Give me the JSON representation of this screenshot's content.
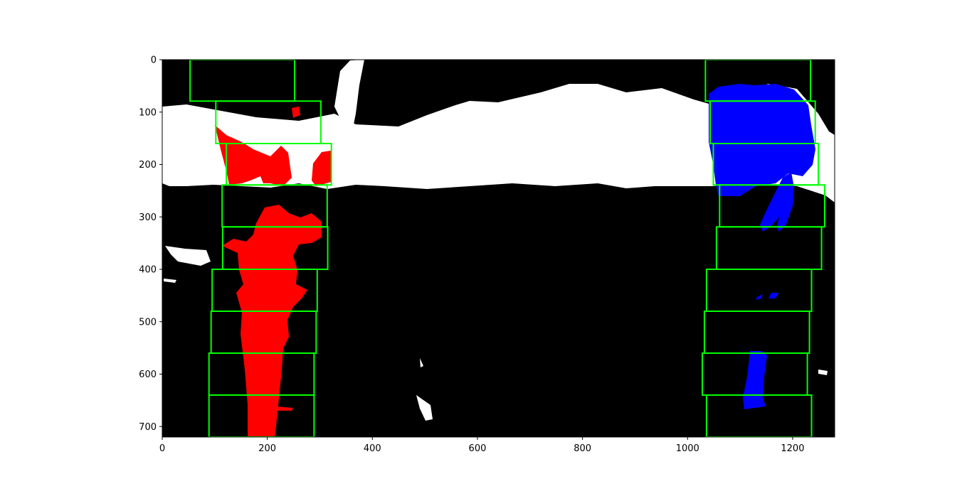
{
  "chart_data": {
    "type": "image",
    "xlim": [
      0,
      1280
    ],
    "ylim": [
      720,
      0
    ],
    "xticks": [
      0,
      200,
      400,
      600,
      800,
      1000,
      1200
    ],
    "yticks": [
      0,
      100,
      200,
      300,
      400,
      500,
      600,
      700
    ],
    "xtick_labels": [
      "0",
      "200",
      "400",
      "600",
      "800",
      "1000",
      "1200"
    ],
    "ytick_labels": [
      "0",
      "100",
      "200",
      "300",
      "400",
      "500",
      "600",
      "700"
    ],
    "grid": false,
    "colors": {
      "background": "#000000",
      "highway_overpass": "#ffffff",
      "left_lane_pixels": "#ff0000",
      "right_lane_pixels": "#0000ff",
      "search_windows": "#00ff00"
    },
    "left_windows": [
      {
        "x0": 53,
        "x1": 252,
        "y0": 0,
        "y1": 79
      },
      {
        "x0": 102,
        "x1": 302,
        "y0": 79,
        "y1": 160
      },
      {
        "x0": 122,
        "x1": 322,
        "y0": 160,
        "y1": 239
      },
      {
        "x0": 114,
        "x1": 314,
        "y0": 239,
        "y1": 319
      },
      {
        "x0": 115,
        "x1": 315,
        "y0": 319,
        "y1": 400
      },
      {
        "x0": 95,
        "x1": 295,
        "y0": 400,
        "y1": 480
      },
      {
        "x0": 93,
        "x1": 293,
        "y0": 480,
        "y1": 560
      },
      {
        "x0": 89,
        "x1": 289,
        "y0": 560,
        "y1": 640
      },
      {
        "x0": 89,
        "x1": 289,
        "y0": 640,
        "y1": 720
      }
    ],
    "right_windows": [
      {
        "x0": 1034,
        "x1": 1234,
        "y0": 0,
        "y1": 79
      },
      {
        "x0": 1043,
        "x1": 1243,
        "y0": 79,
        "y1": 160
      },
      {
        "x0": 1049,
        "x1": 1249,
        "y0": 160,
        "y1": 239
      },
      {
        "x0": 1061,
        "x1": 1261,
        "y0": 239,
        "y1": 319
      },
      {
        "x0": 1055,
        "x1": 1255,
        "y0": 319,
        "y1": 400
      },
      {
        "x0": 1036,
        "x1": 1236,
        "y0": 400,
        "y1": 480
      },
      {
        "x0": 1032,
        "x1": 1232,
        "y0": 480,
        "y1": 560
      },
      {
        "x0": 1028,
        "x1": 1228,
        "y0": 560,
        "y1": 640
      },
      {
        "x0": 1036,
        "x1": 1236,
        "y0": 640,
        "y1": 720
      }
    ]
  }
}
